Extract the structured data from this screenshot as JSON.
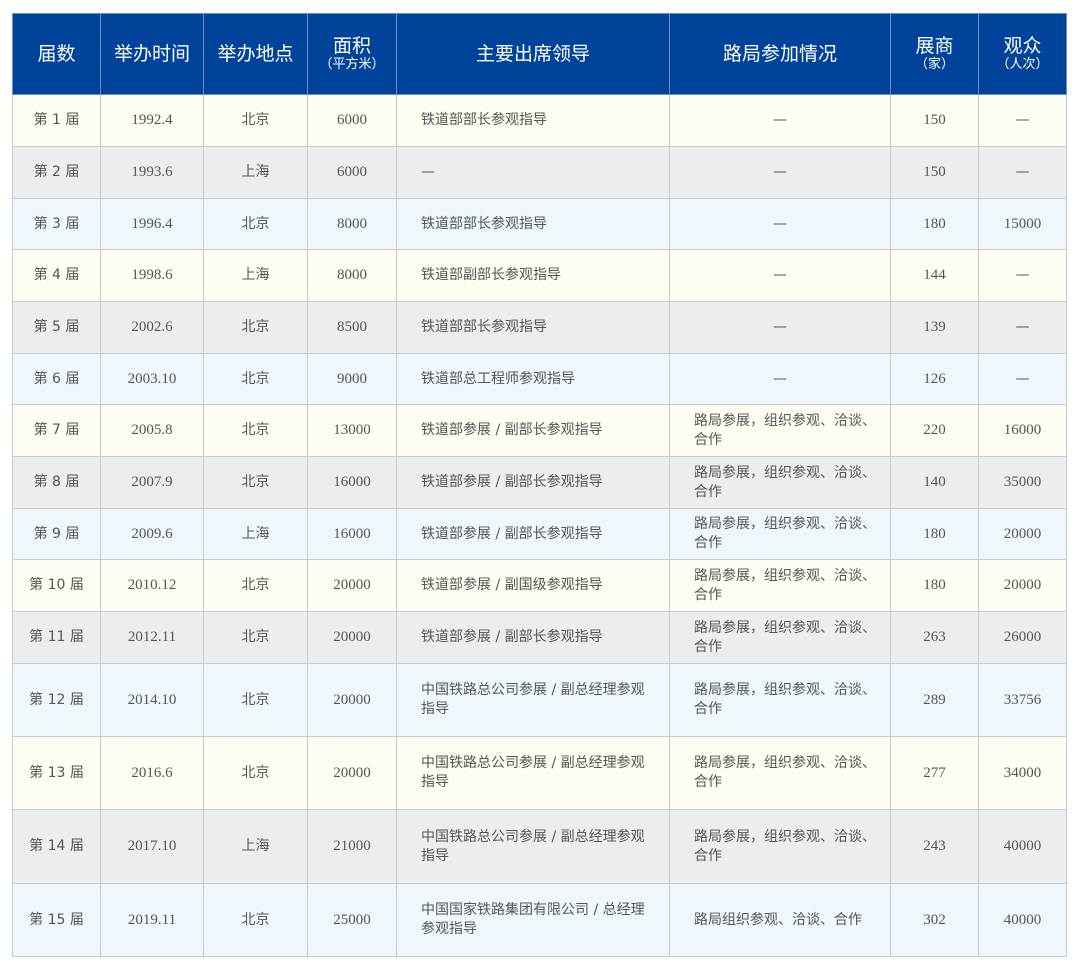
{
  "header": {
    "session": "届数",
    "date": "举办时间",
    "location": "举办地点",
    "area": "面积",
    "area_unit": "（平方米）",
    "leaders": "主要出席领导",
    "bureau": "路局参加情况",
    "exhibitors": "展商",
    "exhibitors_unit": "（家）",
    "visitors": "观众",
    "visitors_unit": "（人次）"
  },
  "colors": {
    "header_bg": "#00439b",
    "row_cream": "#fdfdf1",
    "row_gray": "#eceeee",
    "row_blue": "#eff7fc"
  },
  "rows": [
    {
      "session": "第 1 届",
      "date": "1992.4",
      "location": "北京",
      "area": "6000",
      "leaders": "铁道部部长参观指导",
      "bureau": "—",
      "exhibitors": "150",
      "visitors": "—"
    },
    {
      "session": "第 2 届",
      "date": "1993.6",
      "location": "上海",
      "area": "6000",
      "leaders": "—",
      "bureau": "—",
      "exhibitors": "150",
      "visitors": "—"
    },
    {
      "session": "第 3 届",
      "date": "1996.4",
      "location": "北京",
      "area": "8000",
      "leaders": "铁道部部长参观指导",
      "bureau": "—",
      "exhibitors": "180",
      "visitors": "15000"
    },
    {
      "session": "第 4 届",
      "date": "1998.6",
      "location": "上海",
      "area": "8000",
      "leaders": "铁道部副部长参观指导",
      "bureau": "—",
      "exhibitors": "144",
      "visitors": "—"
    },
    {
      "session": "第 5 届",
      "date": "2002.6",
      "location": "北京",
      "area": "8500",
      "leaders": "铁道部部长参观指导",
      "bureau": "—",
      "exhibitors": "139",
      "visitors": "—"
    },
    {
      "session": "第 6 届",
      "date": "2003.10",
      "location": "北京",
      "area": "9000",
      "leaders": "铁道部总工程师参观指导",
      "bureau": "—",
      "exhibitors": "126",
      "visitors": "—"
    },
    {
      "session": "第 7 届",
      "date": "2005.8",
      "location": "北京",
      "area": "13000",
      "leaders": "铁道部参展 / 副部长参观指导",
      "bureau": "路局参展，组织参观、洽谈、合作",
      "exhibitors": "220",
      "visitors": "16000"
    },
    {
      "session": "第 8 届",
      "date": "2007.9",
      "location": "北京",
      "area": "16000",
      "leaders": "铁道部参展 / 副部长参观指导",
      "bureau": "路局参展，组织参观、洽谈、合作",
      "exhibitors": "140",
      "visitors": "35000"
    },
    {
      "session": "第 9 届",
      "date": "2009.6",
      "location": "上海",
      "area": "16000",
      "leaders": "铁道部参展 / 副部长参观指导",
      "bureau": "路局参展，组织参观、洽谈、合作",
      "exhibitors": "180",
      "visitors": "20000"
    },
    {
      "session": "第 10 届",
      "date": "2010.12",
      "location": "北京",
      "area": "20000",
      "leaders": "铁道部参展 / 副国级参观指导",
      "bureau": "路局参展，组织参观、洽谈、合作",
      "exhibitors": "180",
      "visitors": "20000"
    },
    {
      "session": "第 11 届",
      "date": "2012.11",
      "location": "北京",
      "area": "20000",
      "leaders": "铁道部参展 / 副部长参观指导",
      "bureau": "路局参展，组织参观、洽谈、合作",
      "exhibitors": "263",
      "visitors": "26000"
    },
    {
      "session": "第 12 届",
      "date": "2014.10",
      "location": "北京",
      "area": "20000",
      "leaders": "中国铁路总公司参展 / 副总经理参观指导",
      "bureau": "路局参展，组织参观、洽谈、合作",
      "exhibitors": "289",
      "visitors": "33756"
    },
    {
      "session": "第 13 届",
      "date": "2016.6",
      "location": "北京",
      "area": "20000",
      "leaders": "中国铁路总公司参展 / 副总经理参观指导",
      "bureau": "路局参展，组织参观、洽谈、合作",
      "exhibitors": "277",
      "visitors": "34000"
    },
    {
      "session": "第 14 届",
      "date": "2017.10",
      "location": "上海",
      "area": "21000",
      "leaders": "中国铁路总公司参展 / 副总经理参观指导",
      "bureau": "路局参展，组织参观、洽谈、合作",
      "exhibitors": "243",
      "visitors": "40000"
    },
    {
      "session": "第 15 届",
      "date": "2019.11",
      "location": "北京",
      "area": "25000",
      "leaders": "中国国家铁路集团有限公司 / 总经理参观指导",
      "bureau": "路局组织参观、洽谈、合作",
      "exhibitors": "302",
      "visitors": "40000"
    }
  ]
}
